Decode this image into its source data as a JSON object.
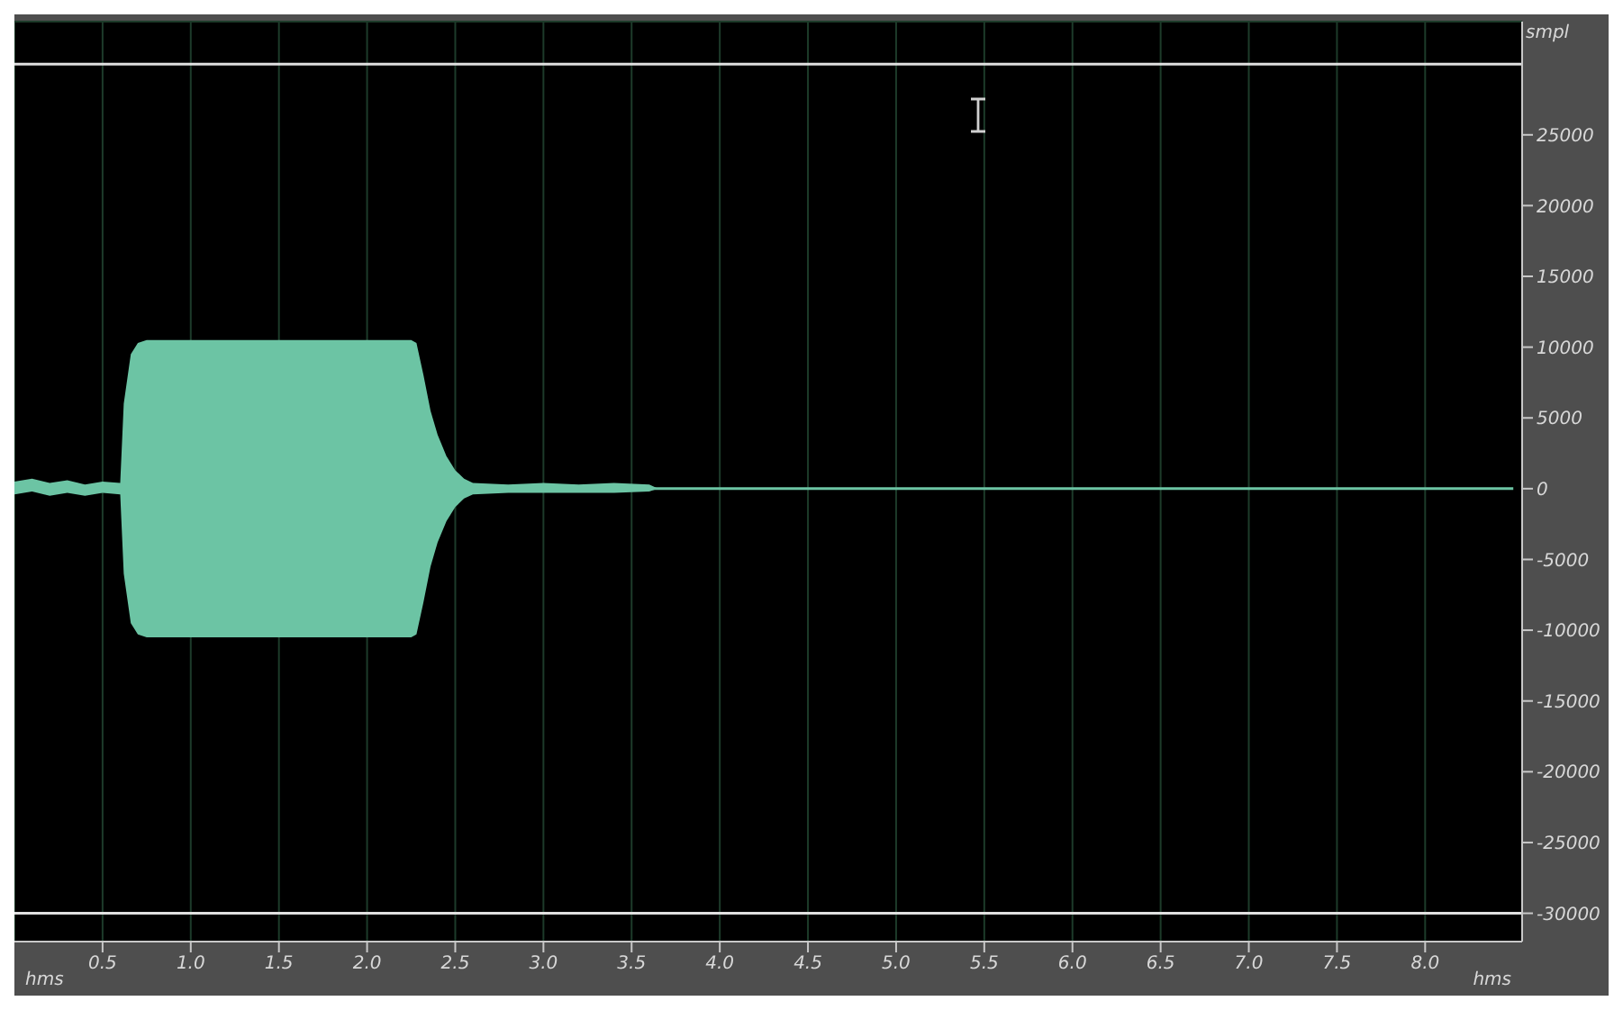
{
  "chart_data": {
    "type": "line",
    "xlabel": "hms",
    "ylabel": "smpl",
    "x": [
      0,
      0.1,
      0.2,
      0.3,
      0.4,
      0.5,
      0.6,
      0.62,
      0.66,
      0.7,
      0.75,
      1.0,
      1.5,
      2.0,
      2.25,
      2.28,
      2.32,
      2.36,
      2.4,
      2.45,
      2.5,
      2.55,
      2.6,
      2.8,
      3.0,
      3.2,
      3.4,
      3.6,
      3.65,
      8.5
    ],
    "series": [
      {
        "color": "#6cc4a4",
        "values": [
          0,
          0,
          0,
          0,
          0,
          0,
          0,
          0,
          0,
          0,
          0,
          0,
          0,
          0,
          0,
          0,
          0,
          0,
          0,
          0,
          0,
          0,
          0,
          0,
          0,
          0,
          0,
          0,
          0,
          0
        ],
        "upper": [
          500,
          700,
          400,
          600,
          300,
          500,
          400,
          6000,
          9500,
          10300,
          10500,
          10500,
          10500,
          10500,
          10500,
          10300,
          8000,
          5500,
          3800,
          2300,
          1300,
          700,
          400,
          300,
          400,
          300,
          400,
          300,
          0,
          0
        ],
        "lower": [
          -400,
          -200,
          -500,
          -300,
          -500,
          -300,
          -400,
          -6000,
          -9500,
          -10300,
          -10500,
          -10500,
          -10500,
          -10500,
          -10500,
          -10300,
          -8000,
          -5500,
          -3800,
          -2300,
          -1300,
          -700,
          -400,
          -300,
          -300,
          -300,
          -300,
          -200,
          0,
          0
        ]
      }
    ],
    "xlim": [
      0,
      8.55
    ],
    "xticks": [
      {
        "value": 0.5,
        "label": "0.5"
      },
      {
        "value": 1,
        "label": "1.0"
      },
      {
        "value": 1.5,
        "label": "1.5"
      },
      {
        "value": 2,
        "label": "2.0"
      },
      {
        "value": 2.5,
        "label": "2.5"
      },
      {
        "value": 3,
        "label": "3.0"
      },
      {
        "value": 3.5,
        "label": "3.5"
      },
      {
        "value": 4,
        "label": "4.0"
      },
      {
        "value": 4.5,
        "label": "4.5"
      },
      {
        "value": 5,
        "label": "5.0"
      },
      {
        "value": 5.5,
        "label": "5.5"
      },
      {
        "value": 6,
        "label": "6.0"
      },
      {
        "value": 6.5,
        "label": "6.5"
      },
      {
        "value": 7,
        "label": "7.0"
      },
      {
        "value": 7.5,
        "label": "7.5"
      },
      {
        "value": 8,
        "label": "8.0"
      }
    ],
    "ylim": [
      -32000,
      33000
    ],
    "yticks": [
      -30000,
      -25000,
      -20000,
      -15000,
      -10000,
      -5000,
      0,
      5000,
      10000,
      15000,
      20000,
      25000
    ],
    "ref_lines": [
      {
        "axis": "y",
        "value": 30000,
        "color": "#e0e0e0"
      },
      {
        "axis": "y",
        "value": -30000,
        "color": "#e0e0e0"
      }
    ],
    "grid": true
  }
}
